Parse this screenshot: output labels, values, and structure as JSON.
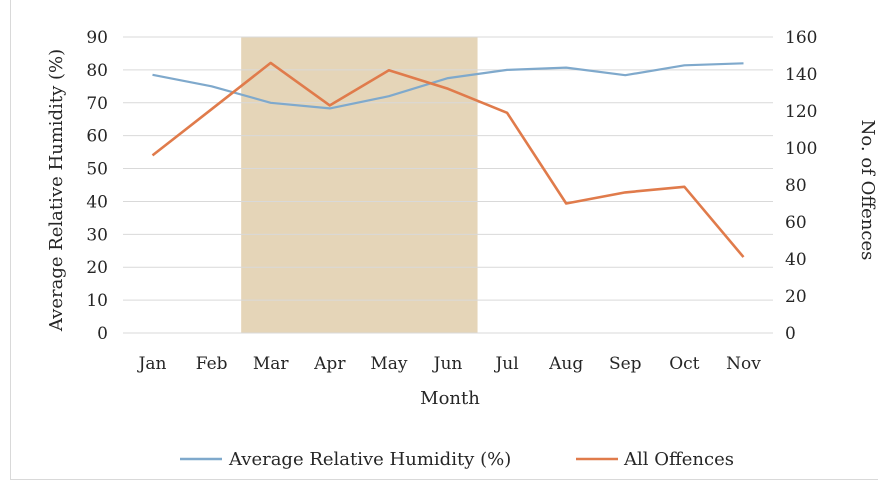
{
  "chart_data": {
    "type": "line",
    "categories": [
      "Jan",
      "Feb",
      "Mar",
      "Apr",
      "May",
      "Jun",
      "Jul",
      "Aug",
      "Sep",
      "Oct",
      "Nov"
    ],
    "series": [
      {
        "name": "Average Relative Humidity (%)",
        "axis": "left",
        "color": "#7fa9cc",
        "values": [
          78.5,
          75,
          70,
          68.3,
          72,
          77.5,
          80,
          80.7,
          78.4,
          81.4,
          82
        ]
      },
      {
        "name": "All Offences",
        "axis": "right",
        "color": "#e07b4b",
        "values": [
          96,
          121,
          146,
          123,
          142,
          132,
          119,
          70,
          76,
          79,
          41
        ]
      }
    ],
    "highlight": {
      "from": "Mar",
      "to": "Jun",
      "color": "#e5d5b8"
    },
    "xlabel": "Month",
    "ylabel": "Average Relative Humidity (%)",
    "y2label": "No. of Offences",
    "ylim": [
      0,
      90
    ],
    "y2lim": [
      0,
      160
    ],
    "yticks": [
      "0",
      "10",
      "20",
      "30",
      "40",
      "50",
      "60",
      "70",
      "80",
      "90"
    ],
    "y2ticks": [
      "0",
      "20",
      "40",
      "60",
      "80",
      "100",
      "120",
      "140",
      "160"
    ],
    "grid": true,
    "legend_position": "bottom"
  }
}
